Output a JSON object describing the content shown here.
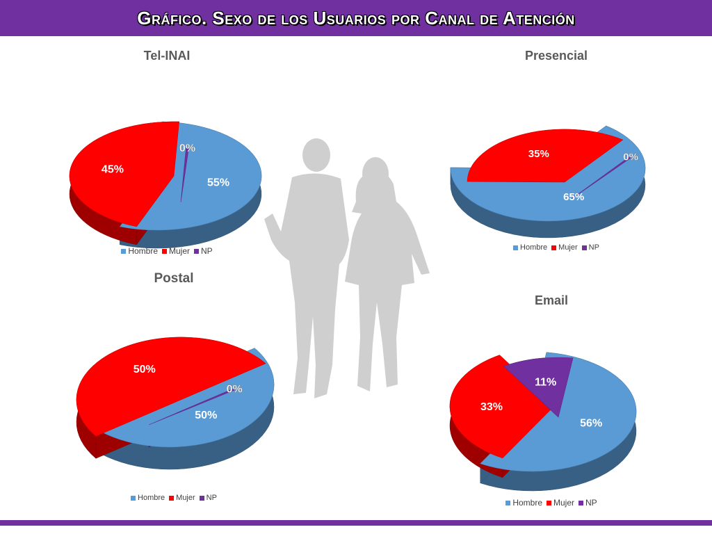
{
  "page": {
    "title": "Gráfico. Sexo de los Usuarios por Canal de Atención",
    "accent_color": "#7030a0"
  },
  "legend_labels": [
    "Hombre",
    "Mujer",
    "NP"
  ],
  "series_colors": {
    "Hombre": "#5b9bd5",
    "Mujer": "#ff0000",
    "NP": "#7030a0"
  },
  "chart_data": [
    {
      "type": "pie",
      "title": "Tel-INAI",
      "categories": [
        "Hombre",
        "Mujer",
        "NP"
      ],
      "values": [
        55,
        45,
        0
      ],
      "labels": [
        "55%",
        "45%",
        "0%"
      ],
      "legend_position": "bottom"
    },
    {
      "type": "pie",
      "title": "Presencial",
      "categories": [
        "Hombre",
        "Mujer",
        "NP"
      ],
      "values": [
        65,
        35,
        0
      ],
      "labels": [
        "65%",
        "35%",
        "0%"
      ],
      "legend_position": "bottom"
    },
    {
      "type": "pie",
      "title": "Postal",
      "categories": [
        "Hombre",
        "Mujer",
        "NP"
      ],
      "values": [
        50,
        50,
        0
      ],
      "labels": [
        "50%",
        "50%",
        "0%"
      ],
      "legend_position": "bottom"
    },
    {
      "type": "pie",
      "title": "Email",
      "categories": [
        "Hombre",
        "Mujer",
        "NP"
      ],
      "values": [
        56,
        33,
        11
      ],
      "labels": [
        "56%",
        "33%",
        "11%"
      ],
      "legend_position": "bottom"
    }
  ]
}
